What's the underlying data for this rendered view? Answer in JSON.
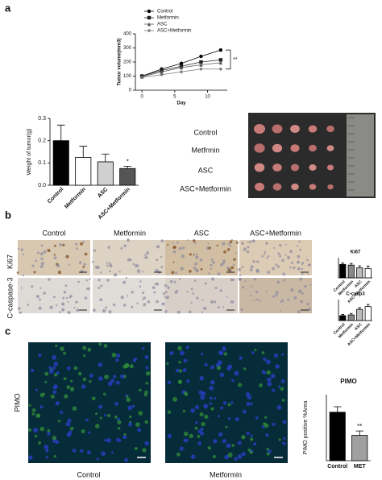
{
  "figure": {
    "panels": [
      "a",
      "b",
      "c"
    ],
    "photo_labels": [
      "Control",
      "Metfrmin",
      "ASC",
      "ASC+Metformin"
    ],
    "ihc": {
      "columns": [
        "Control",
        "Metformin",
        "ASC",
        "ASC+Metformin"
      ],
      "rows": [
        "Ki67",
        "C-caspase-3"
      ]
    },
    "pimo": {
      "row": "PIMO",
      "columns": [
        "Control",
        "Metformin"
      ]
    }
  },
  "chart_data": [
    {
      "type": "line",
      "xlabel": "Day",
      "ylabel": "Tumor volume(mm3)",
      "x": [
        0,
        3,
        6,
        9,
        12
      ],
      "xlim": [
        -1,
        13
      ],
      "xticks": [
        0,
        5,
        10
      ],
      "ylim": [
        0,
        400
      ],
      "yticks": [
        0,
        100,
        200,
        300,
        400
      ],
      "series": [
        {
          "name": "Control",
          "color": "#000000",
          "values": [
            100,
            150,
            190,
            240,
            285
          ]
        },
        {
          "name": "Metformin",
          "color": "#222222",
          "values": [
            100,
            140,
            170,
            200,
            215
          ]
        },
        {
          "name": "ASC",
          "color": "#555555",
          "values": [
            95,
            130,
            160,
            180,
            195
          ]
        },
        {
          "name": "ASC+Metformin",
          "color": "#777777",
          "values": [
            90,
            110,
            130,
            150,
            150
          ]
        }
      ],
      "annotation": "**"
    },
    {
      "type": "bar",
      "ylabel": "Weight of tumor(g)",
      "categories": [
        "Control",
        "Metformin",
        "ASC",
        "ASC+Metformin"
      ],
      "values": [
        0.2,
        0.125,
        0.105,
        0.075
      ],
      "errors": [
        0.07,
        0.05,
        0.035,
        0.01
      ],
      "colors": [
        "#000000",
        "#ffffff",
        "#d0d0d0",
        "#555555"
      ],
      "ylim": [
        0,
        0.3
      ],
      "yticks": [
        {
          "value": 0,
          "label": "0.0"
        },
        0.1,
        0.2,
        0.3
      ],
      "annotation": "*"
    },
    {
      "type": "bar",
      "title": "Ki67",
      "categories": [
        "Control",
        "Metformin",
        "ASC",
        "ASC+Metformin"
      ],
      "values": [
        100,
        95,
        75,
        70
      ],
      "errors": [
        10,
        12,
        15,
        18
      ],
      "colors": [
        "#000000",
        "#888888",
        "#bbbbbb",
        "#ffffff"
      ],
      "ylim": [
        0,
        150
      ]
    },
    {
      "type": "bar",
      "title": "C-casp3",
      "categories": [
        "Control",
        "Metformin",
        "ASC",
        "ASC+Metformin"
      ],
      "values": [
        35,
        40,
        80,
        100
      ],
      "errors": [
        8,
        10,
        12,
        15
      ],
      "colors": [
        "#000000",
        "#888888",
        "#bbbbbb",
        "#ffffff"
      ],
      "ylim": [
        0,
        150
      ]
    },
    {
      "type": "bar",
      "title": "PIMO",
      "ylabel": "PIMO positive %Area",
      "categories": [
        "Control",
        "MET"
      ],
      "values": [
        44,
        23
      ],
      "errors": [
        5,
        4
      ],
      "colors": [
        "#000000",
        "#a0a0a0"
      ],
      "ylim": [
        0,
        60
      ],
      "annotation": "**"
    }
  ]
}
